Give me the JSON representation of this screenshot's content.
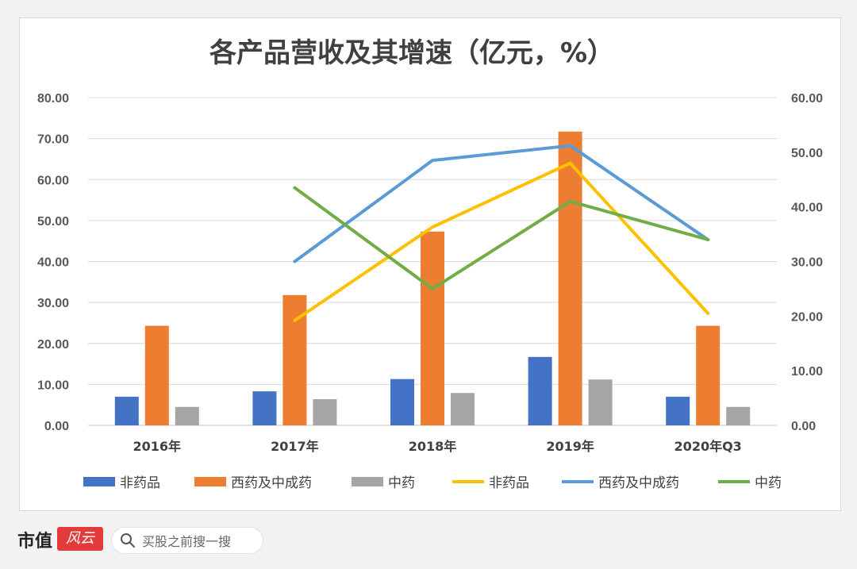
{
  "chart_data": {
    "type": "bar",
    "title": "各产品营收及其增速（亿元，%）",
    "categories": [
      "2016年",
      "2017年",
      "2018年",
      "2019年",
      "2020年Q3"
    ],
    "y_left": {
      "min": 0,
      "max": 80,
      "step": 10,
      "tick_labels": [
        "0.00",
        "10.00",
        "20.00",
        "30.00",
        "40.00",
        "50.00",
        "60.00",
        "70.00",
        "80.00"
      ]
    },
    "y_right": {
      "min": 0,
      "max": 60,
      "step": 10,
      "tick_labels": [
        "0.00",
        "10.00",
        "20.00",
        "30.00",
        "40.00",
        "50.00",
        "60.00"
      ]
    },
    "bar_series": [
      {
        "name": "非药品",
        "color": "#4472c4",
        "values": [
          7.0,
          8.3,
          11.3,
          16.7,
          7.0
        ]
      },
      {
        "name": "西药及中成药",
        "color": "#ed7d31",
        "values": [
          24.3,
          31.8,
          47.3,
          71.7,
          24.3
        ]
      },
      {
        "name": "中药",
        "color": "#a5a5a5",
        "values": [
          4.5,
          6.4,
          7.9,
          11.2,
          4.5
        ]
      }
    ],
    "line_series": [
      {
        "name": "非药品",
        "color": "#ffc000",
        "axis": "right",
        "values": [
          null,
          19.2,
          36.3,
          48.0,
          20.5
        ]
      },
      {
        "name": "西药及中成药",
        "color": "#5b9bd5",
        "axis": "right",
        "values": [
          null,
          30.0,
          48.5,
          51.2,
          34.0
        ]
      },
      {
        "name": "中药",
        "color": "#70ad47",
        "axis": "right",
        "values": [
          null,
          43.5,
          25.0,
          41.0,
          34.0
        ]
      }
    ],
    "legend_position": "bottom",
    "grid": true
  },
  "footer": {
    "brand_text": "市值",
    "brand_mark_text": "风云",
    "search_placeholder": "买股之前搜一搜"
  }
}
